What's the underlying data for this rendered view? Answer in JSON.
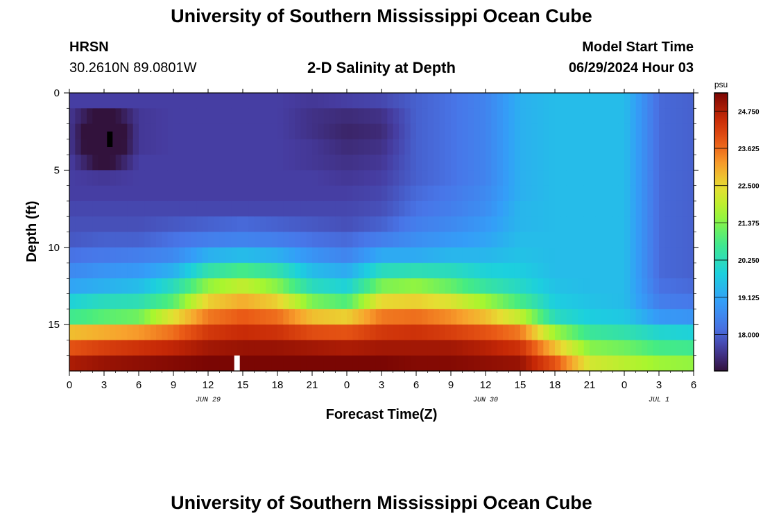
{
  "page": {
    "title": "University of Southern Mississippi Ocean Cube",
    "footer_title": "University of Southern Mississippi Ocean Cube",
    "station": "HRSN",
    "coordinates": "30.2610N  89.0801W",
    "plot_title": "2-D Salinity at Depth",
    "model_start_label": "Model Start Time",
    "model_start_value": "06/29/2024 Hour 03"
  },
  "chart_data": {
    "type": "heatmap",
    "title": "2-D Salinity at Depth",
    "xlabel": "Forecast Time(Z)",
    "ylabel": "Depth (ft)",
    "x_tick_labels": [
      "0",
      "3",
      "6",
      "9",
      "12",
      "15",
      "18",
      "21",
      "0",
      "3",
      "6",
      "9",
      "12",
      "15",
      "18",
      "21",
      "0",
      "3",
      "6"
    ],
    "date_labels": [
      {
        "text": "JUN 29",
        "tick_index": 4
      },
      {
        "text": "JUN 30",
        "tick_index": 12
      },
      {
        "text": "JUL 1",
        "tick_index": 17
      }
    ],
    "xlim_hours": [
      0,
      54
    ],
    "y_tick_labels": [
      "0",
      "5",
      "10",
      "15"
    ],
    "ylim": [
      0,
      18
    ],
    "y_inverted": true,
    "colorbar": {
      "unit": "psu",
      "min": 16.9,
      "max": 25.3,
      "tick_labels": [
        "18.000",
        "19.125",
        "20.250",
        "21.375",
        "22.500",
        "23.625",
        "24.750"
      ]
    },
    "depth_levels_ft": [
      0.5,
      1.5,
      2.5,
      3.5,
      4.5,
      5.5,
      6.5,
      7.5,
      8.5,
      9.5,
      10.5,
      11.5,
      12.5,
      13.5,
      14.5,
      15.5,
      16.5,
      17.5
    ],
    "time_hours": [
      0,
      3,
      6,
      9,
      12,
      15,
      18,
      21,
      24,
      27,
      30,
      33,
      36,
      39,
      42,
      45,
      48,
      51,
      54
    ],
    "salinity_profiles": [
      [
        17.6,
        17.5,
        17.5,
        17.5,
        17.6,
        17.6,
        17.6,
        17.7,
        17.8,
        17.9,
        18.2,
        18.6,
        19.1,
        19.9,
        20.7,
        22.8,
        23.9,
        24.8
      ],
      [
        17.6,
        16.6,
        16.0,
        16.1,
        16.7,
        17.5,
        17.6,
        17.7,
        17.8,
        18.0,
        18.3,
        18.8,
        19.3,
        20.2,
        21.0,
        23.0,
        24.2,
        25.0
      ],
      [
        17.6,
        17.5,
        17.5,
        17.5,
        17.6,
        17.6,
        17.6,
        17.7,
        17.8,
        18.0,
        18.4,
        18.9,
        19.5,
        20.3,
        21.2,
        23.2,
        24.4,
        25.1
      ],
      [
        17.6,
        17.6,
        17.6,
        17.6,
        17.6,
        17.6,
        17.6,
        17.7,
        17.9,
        18.2,
        18.6,
        19.3,
        20.2,
        21.0,
        22.4,
        23.6,
        24.6,
        25.2
      ],
      [
        17.6,
        17.6,
        17.6,
        17.6,
        17.6,
        17.6,
        17.6,
        17.7,
        18.0,
        18.4,
        19.3,
        20.4,
        21.5,
        22.6,
        23.5,
        24.3,
        24.9,
        25.3
      ],
      [
        17.6,
        17.6,
        17.6,
        17.6,
        17.6,
        17.6,
        17.6,
        17.7,
        18.1,
        18.5,
        19.5,
        20.8,
        22.0,
        23.0,
        23.8,
        24.5,
        25.0,
        25.3
      ],
      [
        17.6,
        17.6,
        17.6,
        17.6,
        17.6,
        17.6,
        17.6,
        17.7,
        18.0,
        18.4,
        19.3,
        20.4,
        21.4,
        22.6,
        23.6,
        24.4,
        25.0,
        25.3
      ],
      [
        17.5,
        17.4,
        17.4,
        17.5,
        17.5,
        17.6,
        17.6,
        17.7,
        17.9,
        18.2,
        18.8,
        19.5,
        20.2,
        21.3,
        22.8,
        24.0,
        24.9,
        25.3
      ],
      [
        17.6,
        17.3,
        17.2,
        17.3,
        17.4,
        17.5,
        17.6,
        17.7,
        17.8,
        18.1,
        18.5,
        19.2,
        19.9,
        20.9,
        22.6,
        23.9,
        24.8,
        25.3
      ],
      [
        17.7,
        17.4,
        17.3,
        17.4,
        17.5,
        17.6,
        17.7,
        17.8,
        18.0,
        18.4,
        19.2,
        20.2,
        21.3,
        22.5,
        23.5,
        24.3,
        24.9,
        25.3
      ],
      [
        18.0,
        18.0,
        18.0,
        18.0,
        18.0,
        18.0,
        18.1,
        18.2,
        18.4,
        18.7,
        19.2,
        20.3,
        21.5,
        22.6,
        23.6,
        24.4,
        24.9,
        25.2
      ],
      [
        18.2,
        18.2,
        18.2,
        18.2,
        18.2,
        18.2,
        18.3,
        18.4,
        18.6,
        18.9,
        19.4,
        20.2,
        21.1,
        22.3,
        23.3,
        24.2,
        24.9,
        25.2
      ],
      [
        18.5,
        18.5,
        18.5,
        18.5,
        18.5,
        18.5,
        18.6,
        18.7,
        18.9,
        19.1,
        19.4,
        19.9,
        20.5,
        21.6,
        22.8,
        23.9,
        24.7,
        25.1
      ],
      [
        19.3,
        19.3,
        19.3,
        19.3,
        19.3,
        19.3,
        19.3,
        19.4,
        19.4,
        19.5,
        19.6,
        19.8,
        20.1,
        20.8,
        22.0,
        23.5,
        24.4,
        25.0
      ],
      [
        19.5,
        19.5,
        19.5,
        19.5,
        19.5,
        19.5,
        19.5,
        19.5,
        19.5,
        19.5,
        19.5,
        19.5,
        19.6,
        19.8,
        20.2,
        21.6,
        22.8,
        23.9
      ],
      [
        19.5,
        19.5,
        19.5,
        19.5,
        19.5,
        19.5,
        19.5,
        19.5,
        19.5,
        19.5,
        19.5,
        19.5,
        19.5,
        19.6,
        19.8,
        20.6,
        21.4,
        22.2
      ],
      [
        19.5,
        19.5,
        19.5,
        19.5,
        19.5,
        19.5,
        19.5,
        19.5,
        19.5,
        19.5,
        19.5,
        19.5,
        19.5,
        19.5,
        19.7,
        20.4,
        21.2,
        21.9
      ],
      [
        18.1,
        18.1,
        18.1,
        18.1,
        18.1,
        18.1,
        18.1,
        18.1,
        18.1,
        18.1,
        18.1,
        18.1,
        18.2,
        18.4,
        18.9,
        20.0,
        20.8,
        21.6
      ],
      [
        18.0,
        18.0,
        18.0,
        18.0,
        18.0,
        18.0,
        18.0,
        18.0,
        18.0,
        18.0,
        18.0,
        18.0,
        18.1,
        18.3,
        18.8,
        19.9,
        20.7,
        21.5
      ]
    ],
    "markers": [
      {
        "color": "#000000",
        "time_hours": 3.5,
        "depth_ft": [
          2.5,
          3.5
        ]
      },
      {
        "color": "#ffffff",
        "time_hours": 14.5,
        "depth_ft": [
          17.0,
          18.0
        ]
      }
    ]
  }
}
